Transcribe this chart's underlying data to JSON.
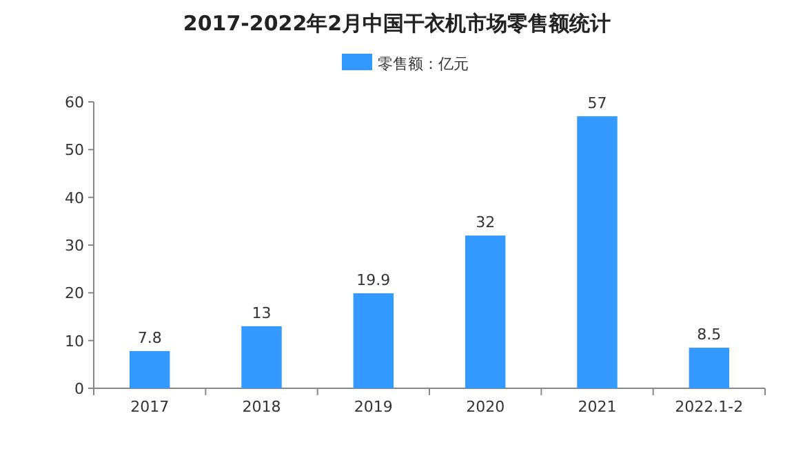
{
  "chart_data": {
    "type": "bar",
    "title": "2017-2022年2月中国干衣机市场零售额统计",
    "categories": [
      "2017",
      "2018",
      "2019",
      "2020",
      "2021",
      "2022.1-2"
    ],
    "series": [
      {
        "name": "零售额：亿元",
        "color": "#3399ff",
        "values": [
          7.8,
          13,
          19.9,
          32,
          57,
          8.5
        ]
      }
    ],
    "ylim": [
      0,
      60
    ],
    "yticks": [
      0,
      10,
      20,
      30,
      40,
      50,
      60
    ],
    "data_labels": true,
    "legend": "top",
    "grid": false
  }
}
